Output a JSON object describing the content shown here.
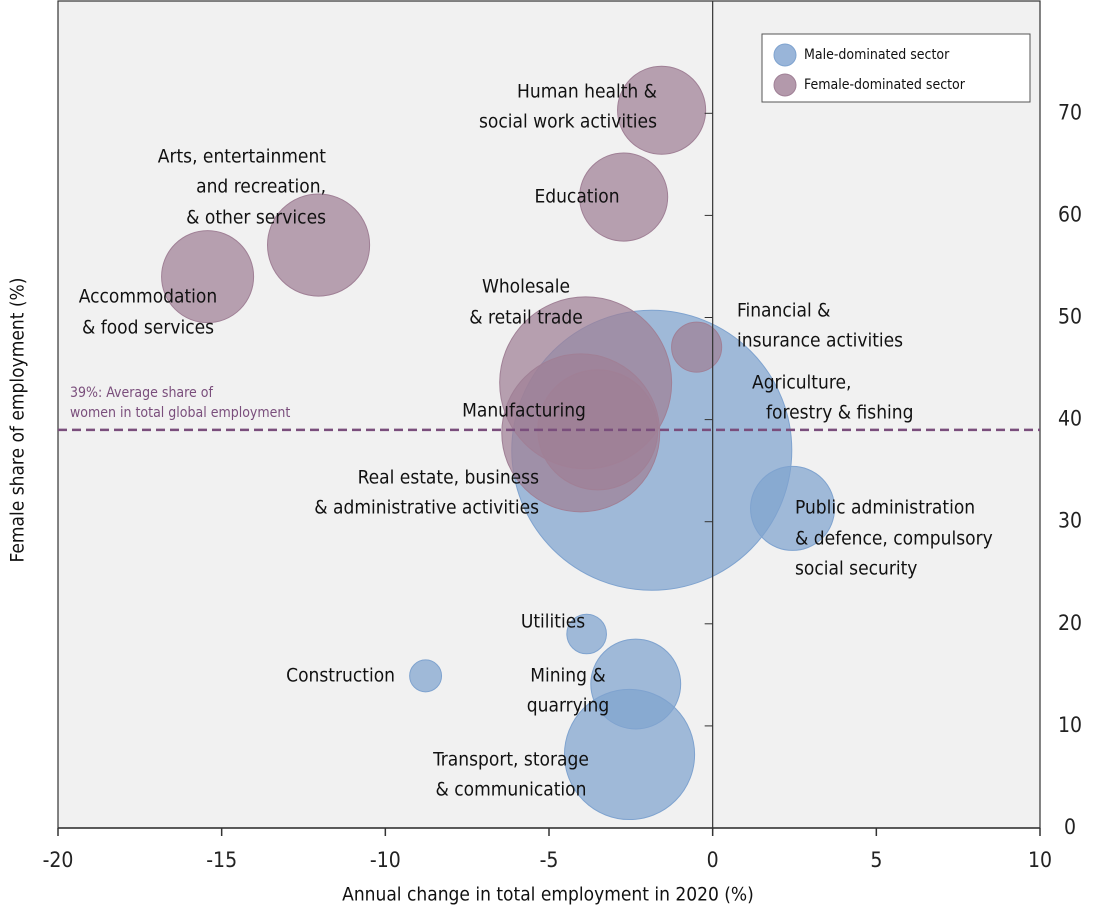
{
  "chart_data": {
    "type": "bubble",
    "xlabel": "Annual change in total employment in 2020 (%)",
    "ylabel": "Female share of employment (%)",
    "xlim": [
      -20,
      10
    ],
    "xticks": [
      -20,
      -15,
      -10,
      -5,
      0,
      5,
      10
    ],
    "ylim": [
      0,
      81
    ],
    "yticks": [
      0,
      10,
      20,
      30,
      40,
      50,
      60,
      70
    ],
    "legend": "upper right",
    "average_line": {
      "value": 39,
      "color": "#7a4e7c",
      "label": [
        "39%: Average share of",
        "women in total global employment"
      ]
    },
    "series": [
      {
        "name": "Male-dominated sector",
        "color": "#7fa3cf",
        "x": [
          -1.86,
          2.44,
          -3.85,
          -8.77,
          -2.35,
          -2.54
        ],
        "values": [
          37.0,
          31.3,
          19.0,
          14.9,
          14.1,
          7.2
        ],
        "sizes": [
          100,
          9.0,
          2.0,
          1.3,
          10.3,
          21.6
        ],
        "labels": [
          [
            "Agriculture,",
            "forestry & fishing"
          ],
          [
            "Public administration",
            "& defence,  compulsory",
            "social security"
          ],
          [
            "Utilities"
          ],
          [
            "Construction"
          ],
          [
            "Mining &",
            "quarrying"
          ],
          [
            "Transport, storage",
            "& communication"
          ]
        ]
      },
      {
        "name": "Female-dominated sector",
        "color": "#a08096",
        "x": [
          -1.56,
          -2.72,
          -12.04,
          -15.43,
          -0.49,
          -3.88,
          -4.03,
          -3.51
        ],
        "values": [
          70.3,
          61.8,
          57.1,
          54.0,
          47.1,
          43.6,
          38.7,
          39.0
        ],
        "sizes": [
          9.9,
          9.9,
          13.3,
          10.8,
          3.2,
          37.7,
          31.8,
          18.4
        ],
        "labels": [
          [
            "Human health &",
            "social work activities"
          ],
          [
            "Education"
          ],
          [
            "Arts, entertainment",
            "and recreation,",
            "& other services"
          ],
          [
            "Accommodation",
            "& food services"
          ],
          [
            "Financial &",
            "insurance activities"
          ],
          [
            "Wholesale",
            "& retail trade"
          ],
          [
            "Manufacturing"
          ],
          [
            "Real estate, business",
            "& administrative activities"
          ]
        ]
      }
    ]
  }
}
